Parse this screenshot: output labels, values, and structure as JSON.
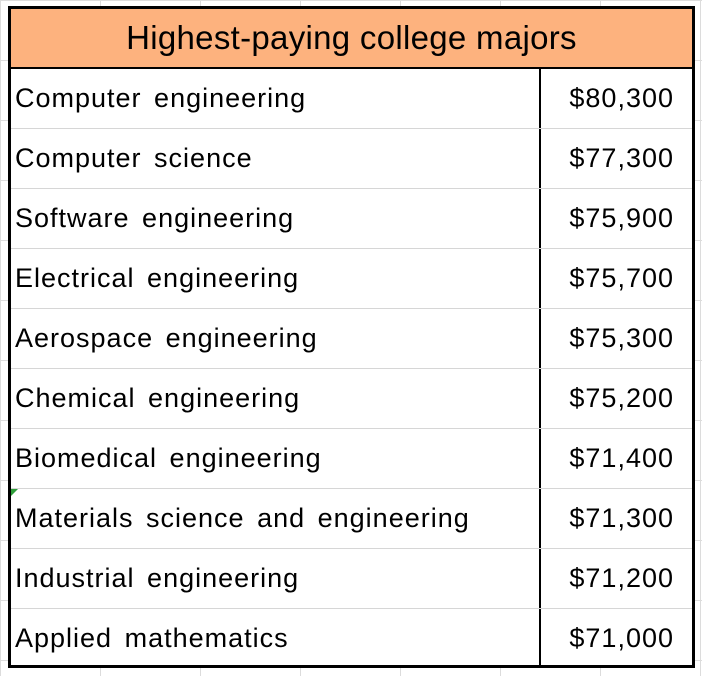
{
  "title": "Highest-paying college majors",
  "colors": {
    "header_fill": "#FDB27E",
    "border": "#000000",
    "comment_marker": "#2F9E3A"
  },
  "rows": [
    {
      "major": "Computer engineering",
      "salary": "$80,300"
    },
    {
      "major": "Computer science",
      "salary": "$77,300"
    },
    {
      "major": "Software engineering",
      "salary": "$75,900"
    },
    {
      "major": "Electrical engineering",
      "salary": "$75,700"
    },
    {
      "major": "Aerospace engineering",
      "salary": "$75,300"
    },
    {
      "major": "Chemical engineering",
      "salary": "$75,200"
    },
    {
      "major": "Biomedical engineering",
      "salary": "$71,400"
    },
    {
      "major": "Materials science and engineering",
      "salary": "$71,300"
    },
    {
      "major": "Industrial engineering",
      "salary": "$71,200"
    },
    {
      "major": "Applied mathematics",
      "salary": "$71,000"
    }
  ]
}
